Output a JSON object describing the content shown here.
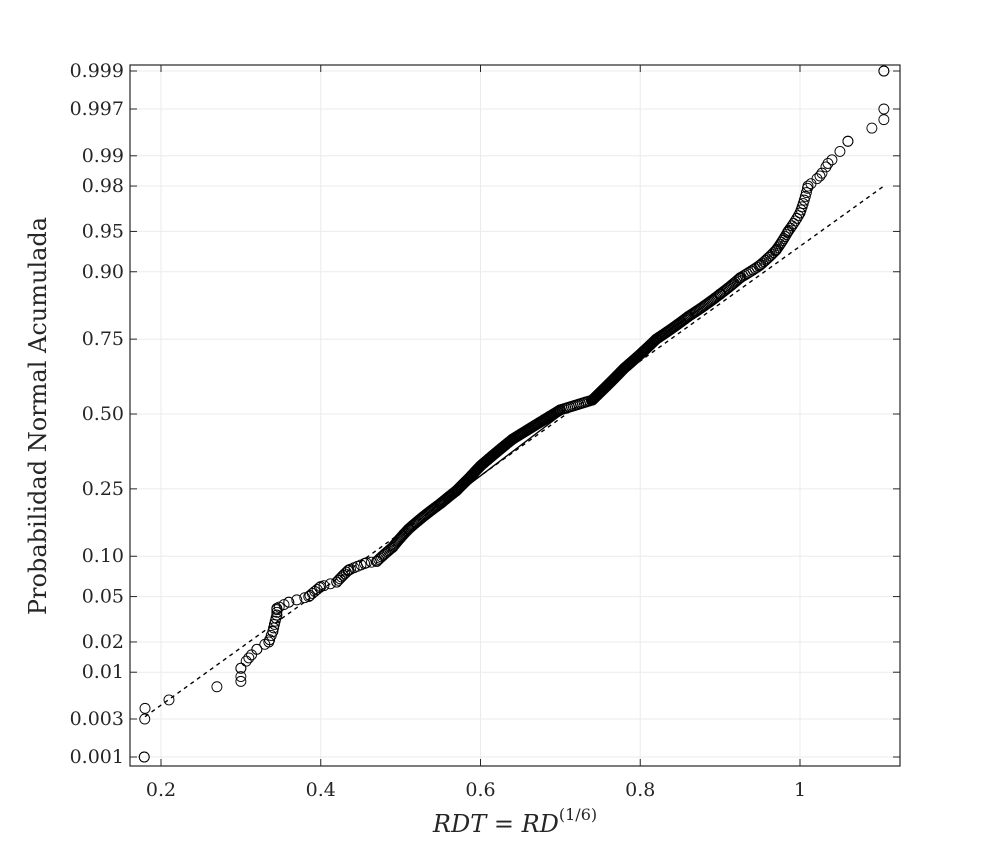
{
  "chart_data": {
    "type": "scatter",
    "title": "",
    "xlabel_italic": "RDT = RD",
    "xlabel_superscript": "(1/6)",
    "ylabel": "Probabilidad Normal Acumulada",
    "xlim": [
      0.17,
      1.13
    ],
    "y_scale": "normal-probability",
    "grid": true,
    "legend": "none",
    "x_ticks": [
      0.2,
      0.4,
      0.6,
      0.8,
      1
    ],
    "x_tick_labels": [
      "0.2",
      "0.4",
      "0.6",
      "0.8",
      "1"
    ],
    "y_ticks": [
      0.001,
      0.003,
      0.01,
      0.02,
      0.05,
      0.1,
      0.25,
      0.5,
      0.75,
      0.9,
      0.95,
      0.98,
      0.99,
      0.997,
      0.999
    ],
    "y_tick_labels": [
      "0.001",
      "0.003",
      "0.01",
      "0.02",
      "0.05",
      "0.10",
      "0.25",
      "0.50",
      "0.75",
      "0.90",
      "0.95",
      "0.98",
      "0.99",
      "0.997",
      "0.999"
    ],
    "colors": {
      "marker": "#000000",
      "axes": "#262626",
      "grid": "#ebebeb"
    },
    "reference_line": {
      "solid": [
        [
          0.587,
          0.265
        ],
        [
          0.702,
          0.5
        ]
      ],
      "dashed": [
        [
          0.18,
          0.0032
        ],
        [
          1.105,
          0.98
        ]
      ]
    },
    "sample": {
      "n": 500,
      "anchors": [
        [
          0.179,
          0.001
        ],
        [
          0.18,
          0.004
        ],
        [
          0.3,
          0.008
        ],
        [
          0.3,
          0.011
        ],
        [
          0.31,
          0.014
        ],
        [
          0.32,
          0.017
        ],
        [
          0.335,
          0.02
        ],
        [
          0.34,
          0.025
        ],
        [
          0.345,
          0.035
        ],
        [
          0.345,
          0.04
        ],
        [
          0.36,
          0.045
        ],
        [
          0.385,
          0.05
        ],
        [
          0.4,
          0.06
        ],
        [
          0.42,
          0.065
        ],
        [
          0.435,
          0.08
        ],
        [
          0.457,
          0.09
        ],
        [
          0.47,
          0.092
        ],
        [
          0.49,
          0.115
        ],
        [
          0.51,
          0.15
        ],
        [
          0.55,
          0.21
        ],
        [
          0.57,
          0.245
        ],
        [
          0.585,
          0.28
        ],
        [
          0.6,
          0.32
        ],
        [
          0.64,
          0.41
        ],
        [
          0.68,
          0.48
        ],
        [
          0.7,
          0.515
        ],
        [
          0.74,
          0.55
        ],
        [
          0.78,
          0.66
        ],
        [
          0.82,
          0.75
        ],
        [
          0.86,
          0.81
        ],
        [
          0.9,
          0.86
        ],
        [
          0.925,
          0.89
        ],
        [
          0.95,
          0.91
        ],
        [
          0.97,
          0.93
        ],
        [
          0.985,
          0.95
        ],
        [
          1.0,
          0.965
        ],
        [
          1.01,
          0.98
        ],
        [
          1.025,
          0.984
        ],
        [
          1.035,
          0.988
        ],
        [
          1.06,
          0.993
        ],
        [
          1.105,
          0.996
        ],
        [
          1.105,
          0.999
        ]
      ]
    }
  }
}
